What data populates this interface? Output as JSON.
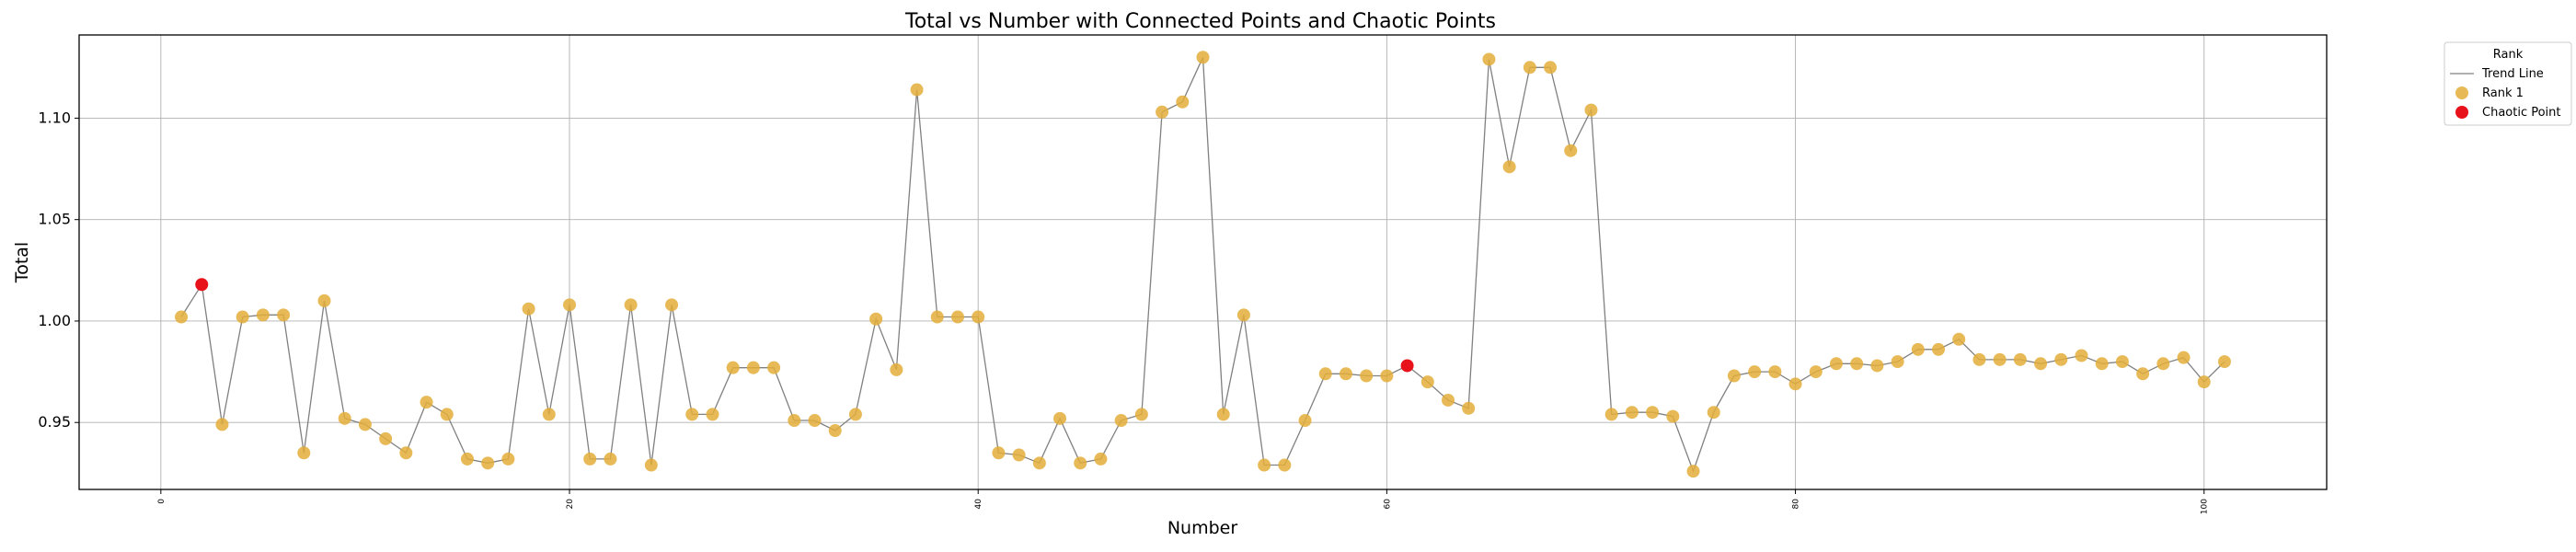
{
  "chart_data": {
    "type": "scatter",
    "title": "Total vs Number with Connected Points and Chaotic Points",
    "xlabel": "Number",
    "ylabel": "Total",
    "xlim": [
      -4,
      106
    ],
    "ylim": [
      0.917,
      1.141
    ],
    "x_ticks": [
      0,
      20,
      40,
      60,
      80,
      100
    ],
    "x_tick_labels": [
      "0",
      "20",
      "40",
      "60",
      "80",
      "100"
    ],
    "y_ticks": [
      0.95,
      1.0,
      1.05,
      1.1
    ],
    "y_tick_labels": [
      "0.95",
      "1.00",
      "1.05",
      "1.10"
    ],
    "grid": true,
    "legend": {
      "title": "Rank",
      "placement": "outside-top-right",
      "entries": [
        "Trend Line",
        "Rank 1",
        "Chaotic Point"
      ]
    },
    "colors": {
      "trend_line": "#808080",
      "rank1": "#E3AE3A",
      "chaotic": "#E8121B"
    },
    "x": [
      1,
      2,
      3,
      4,
      5,
      6,
      7,
      8,
      9,
      10,
      11,
      12,
      13,
      14,
      15,
      16,
      17,
      18,
      19,
      20,
      21,
      22,
      23,
      24,
      25,
      26,
      27,
      28,
      29,
      30,
      31,
      32,
      33,
      34,
      35,
      36,
      37,
      38,
      39,
      40,
      41,
      42,
      43,
      44,
      45,
      46,
      47,
      48,
      49,
      50,
      51,
      52,
      53,
      54,
      55,
      56,
      57,
      58,
      59,
      60,
      61,
      62,
      63,
      64,
      65,
      66,
      67,
      68,
      69,
      70,
      71,
      72,
      73,
      74,
      75,
      76,
      77,
      78,
      79,
      80,
      81,
      82,
      83,
      84,
      85,
      86,
      87,
      88,
      89,
      90,
      91,
      92,
      93,
      94,
      95,
      96,
      97,
      98,
      99,
      100,
      101
    ],
    "y": [
      1.002,
      1.018,
      0.949,
      1.002,
      1.003,
      1.003,
      0.935,
      1.01,
      0.952,
      0.949,
      0.942,
      0.935,
      0.96,
      0.954,
      0.932,
      0.93,
      0.932,
      1.006,
      0.954,
      1.008,
      0.932,
      0.932,
      1.008,
      0.929,
      1.008,
      0.954,
      0.954,
      0.977,
      0.977,
      0.977,
      0.951,
      0.951,
      0.946,
      0.954,
      1.001,
      0.976,
      1.114,
      1.002,
      1.002,
      1.002,
      0.935,
      0.934,
      0.93,
      0.952,
      0.93,
      0.932,
      0.951,
      0.954,
      1.103,
      1.108,
      1.13,
      0.954,
      1.003,
      0.929,
      0.929,
      0.951,
      0.974,
      0.974,
      0.973,
      0.973,
      0.978,
      0.97,
      0.961,
      0.957,
      1.129,
      1.076,
      1.125,
      1.125,
      1.084,
      1.104,
      0.954,
      0.955,
      0.955,
      0.953,
      0.926,
      0.955,
      0.973,
      0.975,
      0.975,
      0.969,
      0.975,
      0.979,
      0.979,
      0.978,
      0.98,
      0.986,
      0.986,
      0.991,
      0.981,
      0.981,
      0.981,
      0.979,
      0.981,
      0.983,
      0.979,
      0.98,
      0.974,
      0.979,
      0.982,
      0.97,
      0.98
    ],
    "chaotic_points": [
      {
        "x": 2,
        "y": 1.018
      },
      {
        "x": 61,
        "y": 0.978
      }
    ]
  }
}
